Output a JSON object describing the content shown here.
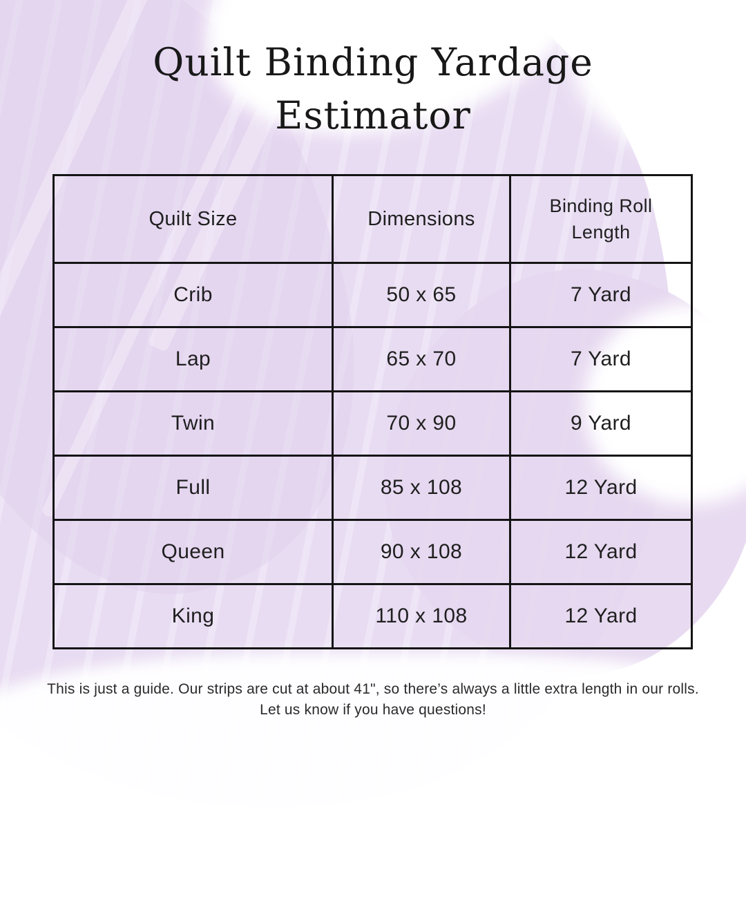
{
  "title": {
    "line1": "Quilt Binding Yardage",
    "line2": "Estimator"
  },
  "table": {
    "headers": [
      "Quilt Size",
      "Dimensions",
      "Binding Roll Length"
    ],
    "rows": [
      {
        "size": "Crib",
        "dimensions": "50 x 65",
        "binding_length": "7 Yard"
      },
      {
        "size": "Lap",
        "dimensions": "65 x 70",
        "binding_length": "7 Yard"
      },
      {
        "size": "Twin",
        "dimensions": "70 x 90",
        "binding_length": "9 Yard"
      },
      {
        "size": "Full",
        "dimensions": "85 x 108",
        "binding_length": "12 Yard"
      },
      {
        "size": "Queen",
        "dimensions": "90 x 108",
        "binding_length": "12 Yard"
      },
      {
        "size": "King",
        "dimensions": "110 x 108",
        "binding_length": "12 Yard"
      }
    ]
  },
  "footer": {
    "note": "This is just a guide. Our strips are cut at about 41\", so there’s always a little extra length in our rolls. Let us know if you have questions!"
  },
  "colors": {
    "background": "#ffffff",
    "wash_lavender": "#e8dcf2",
    "wash_lavender_deep": "#e2d2ee",
    "table_border": "#141414",
    "text": "#1f1f1f"
  }
}
